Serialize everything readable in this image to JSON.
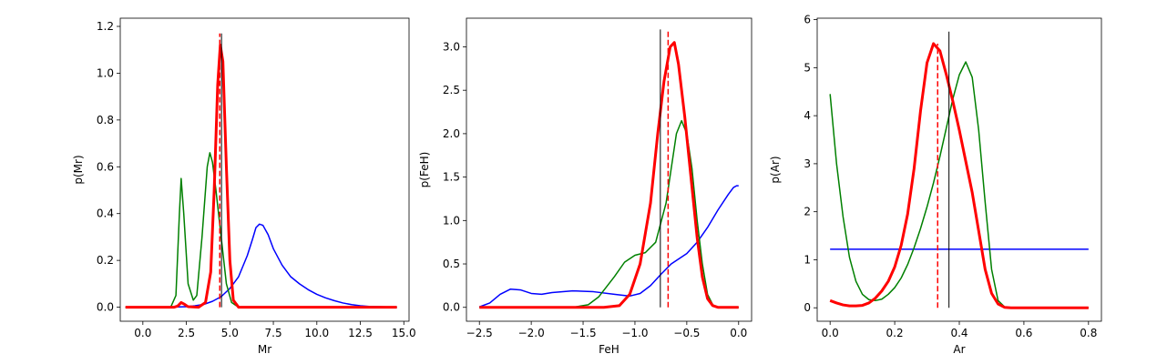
{
  "chart_data": [
    {
      "type": "line",
      "xlabel": "Mr",
      "ylabel": "p(Mr)",
      "xlim": [
        -1.3,
        15.3
      ],
      "ylim": [
        -0.06,
        1.235
      ],
      "xticks": [
        0.0,
        2.5,
        5.0,
        7.5,
        10.0,
        12.5,
        15.0
      ],
      "xtick_labels": [
        "0.0",
        "2.5",
        "5.0",
        "7.5",
        "10.0",
        "12.5",
        "15.0"
      ],
      "yticks": [
        0.0,
        0.2,
        0.4,
        0.6,
        0.8,
        1.0,
        1.2
      ],
      "ytick_labels": [
        "0.0",
        "0.2",
        "0.4",
        "0.6",
        "0.8",
        "1.0",
        "1.2"
      ],
      "series": [
        {
          "color": "#0000ff",
          "width": 1.5,
          "points": [
            [
              -1,
              0
            ],
            [
              1.5,
              0
            ],
            [
              2.5,
              0.002
            ],
            [
              3,
              0.006
            ],
            [
              3.5,
              0.012
            ],
            [
              4,
              0.025
            ],
            [
              4.5,
              0.045
            ],
            [
              5,
              0.08
            ],
            [
              5.5,
              0.13
            ],
            [
              6,
              0.22
            ],
            [
              6.3,
              0.29
            ],
            [
              6.5,
              0.34
            ],
            [
              6.7,
              0.355
            ],
            [
              6.9,
              0.35
            ],
            [
              7.2,
              0.31
            ],
            [
              7.5,
              0.25
            ],
            [
              8,
              0.18
            ],
            [
              8.5,
              0.13
            ],
            [
              9,
              0.1
            ],
            [
              9.5,
              0.075
            ],
            [
              10,
              0.055
            ],
            [
              10.5,
              0.04
            ],
            [
              11,
              0.028
            ],
            [
              11.5,
              0.018
            ],
            [
              12,
              0.011
            ],
            [
              12.5,
              0.006
            ],
            [
              13,
              0.003
            ],
            [
              14,
              0.001
            ],
            [
              14.6,
              0
            ]
          ]
        },
        {
          "color": "#008000",
          "width": 1.5,
          "points": [
            [
              -1,
              0
            ],
            [
              1.6,
              0
            ],
            [
              1.9,
              0.05
            ],
            [
              2.1,
              0.4
            ],
            [
              2.2,
              0.55
            ],
            [
              2.35,
              0.4
            ],
            [
              2.6,
              0.1
            ],
            [
              2.9,
              0.03
            ],
            [
              3.1,
              0.05
            ],
            [
              3.4,
              0.3
            ],
            [
              3.7,
              0.6
            ],
            [
              3.85,
              0.66
            ],
            [
              4.0,
              0.62
            ],
            [
              4.2,
              0.5
            ],
            [
              4.5,
              0.3
            ],
            [
              4.8,
              0.1
            ],
            [
              5.1,
              0.02
            ],
            [
              5.5,
              0
            ],
            [
              14.6,
              0
            ]
          ]
        },
        {
          "color": "#ff0000",
          "width": 3,
          "points": [
            [
              -1,
              0
            ],
            [
              1.8,
              0
            ],
            [
              2.0,
              0.005
            ],
            [
              2.2,
              0.02
            ],
            [
              2.4,
              0.012
            ],
            [
              2.6,
              0.002
            ],
            [
              3.2,
              0
            ],
            [
              3.6,
              0.02
            ],
            [
              3.9,
              0.15
            ],
            [
              4.1,
              0.5
            ],
            [
              4.3,
              0.95
            ],
            [
              4.45,
              1.12
            ],
            [
              4.6,
              1.05
            ],
            [
              4.8,
              0.6
            ],
            [
              5.0,
              0.2
            ],
            [
              5.2,
              0.03
            ],
            [
              5.5,
              0
            ],
            [
              14.6,
              0
            ]
          ]
        }
      ],
      "vlines": [
        {
          "x": 4.52,
          "color": "#000000",
          "dashed": false,
          "width": 1,
          "ymax": 1.17
        },
        {
          "x": 4.42,
          "color": "#ff0000",
          "dashed": true,
          "width": 1.5,
          "ymax": 1.17
        }
      ]
    },
    {
      "type": "line",
      "xlabel": "FeH",
      "ylabel": "p(FeH)",
      "xlim": [
        -2.625,
        0.125
      ],
      "ylim": [
        -0.16,
        3.33
      ],
      "xticks": [
        -2.5,
        -2.0,
        -1.5,
        -1.0,
        -0.5,
        0.0
      ],
      "xtick_labels": [
        "−2.5",
        "−2.0",
        "−1.5",
        "−1.0",
        "−0.5",
        "0.0"
      ],
      "yticks": [
        0.0,
        0.5,
        1.0,
        1.5,
        2.0,
        2.5,
        3.0
      ],
      "ytick_labels": [
        "0.0",
        "0.5",
        "1.0",
        "1.5",
        "2.0",
        "2.5",
        "3.0"
      ],
      "series": [
        {
          "color": "#0000ff",
          "width": 1.5,
          "points": [
            [
              -2.5,
              0.005
            ],
            [
              -2.4,
              0.05
            ],
            [
              -2.3,
              0.15
            ],
            [
              -2.2,
              0.21
            ],
            [
              -2.1,
              0.2
            ],
            [
              -2.0,
              0.16
            ],
            [
              -1.9,
              0.15
            ],
            [
              -1.8,
              0.17
            ],
            [
              -1.6,
              0.19
            ],
            [
              -1.4,
              0.18
            ],
            [
              -1.2,
              0.15
            ],
            [
              -1.05,
              0.13
            ],
            [
              -0.95,
              0.16
            ],
            [
              -0.85,
              0.25
            ],
            [
              -0.75,
              0.38
            ],
            [
              -0.65,
              0.5
            ],
            [
              -0.5,
              0.62
            ],
            [
              -0.4,
              0.75
            ],
            [
              -0.3,
              0.92
            ],
            [
              -0.2,
              1.12
            ],
            [
              -0.1,
              1.3
            ],
            [
              -0.05,
              1.38
            ],
            [
              -0.02,
              1.4
            ],
            [
              0.0,
              1.4
            ]
          ]
        },
        {
          "color": "#008000",
          "width": 1.5,
          "points": [
            [
              -2.5,
              0
            ],
            [
              -1.6,
              0
            ],
            [
              -1.45,
              0.03
            ],
            [
              -1.35,
              0.12
            ],
            [
              -1.2,
              0.35
            ],
            [
              -1.1,
              0.52
            ],
            [
              -1.0,
              0.6
            ],
            [
              -0.9,
              0.63
            ],
            [
              -0.8,
              0.75
            ],
            [
              -0.7,
              1.2
            ],
            [
              -0.65,
              1.6
            ],
            [
              -0.6,
              2.0
            ],
            [
              -0.55,
              2.15
            ],
            [
              -0.5,
              2.0
            ],
            [
              -0.45,
              1.6
            ],
            [
              -0.4,
              1.0
            ],
            [
              -0.35,
              0.5
            ],
            [
              -0.3,
              0.15
            ],
            [
              -0.25,
              0.03
            ],
            [
              -0.2,
              0
            ],
            [
              0.0,
              0
            ]
          ]
        },
        {
          "color": "#ff0000",
          "width": 3,
          "points": [
            [
              -2.5,
              0
            ],
            [
              -1.3,
              0
            ],
            [
              -1.15,
              0.02
            ],
            [
              -1.05,
              0.15
            ],
            [
              -0.95,
              0.5
            ],
            [
              -0.85,
              1.2
            ],
            [
              -0.78,
              2.0
            ],
            [
              -0.72,
              2.6
            ],
            [
              -0.66,
              3.0
            ],
            [
              -0.62,
              3.05
            ],
            [
              -0.58,
              2.8
            ],
            [
              -0.52,
              2.2
            ],
            [
              -0.46,
              1.5
            ],
            [
              -0.4,
              0.8
            ],
            [
              -0.35,
              0.35
            ],
            [
              -0.3,
              0.1
            ],
            [
              -0.25,
              0.02
            ],
            [
              -0.2,
              0
            ],
            [
              0.0,
              0
            ]
          ]
        }
      ],
      "vlines": [
        {
          "x": -0.755,
          "color": "#000000",
          "dashed": false,
          "width": 1,
          "ymax": 3.2
        },
        {
          "x": -0.68,
          "color": "#ff0000",
          "dashed": true,
          "width": 1.5,
          "ymax": 3.2
        }
      ]
    },
    {
      "type": "line",
      "xlabel": "Ar",
      "ylabel": "p(Ar)",
      "xlim": [
        -0.04,
        0.84
      ],
      "ylim": [
        -0.28,
        6.03
      ],
      "xticks": [
        0.0,
        0.2,
        0.4,
        0.6,
        0.8
      ],
      "xtick_labels": [
        "0.0",
        "0.2",
        "0.4",
        "0.6",
        "0.8"
      ],
      "yticks": [
        0,
        1,
        2,
        3,
        4,
        5,
        6
      ],
      "ytick_labels": [
        "0",
        "1",
        "2",
        "3",
        "4",
        "5",
        "6"
      ],
      "series": [
        {
          "color": "#0000ff",
          "width": 1.5,
          "points": [
            [
              0.0,
              1.22
            ],
            [
              0.8,
              1.22
            ]
          ]
        },
        {
          "color": "#008000",
          "width": 1.5,
          "points": [
            [
              0.0,
              4.45
            ],
            [
              0.02,
              3.0
            ],
            [
              0.04,
              1.9
            ],
            [
              0.06,
              1.05
            ],
            [
              0.08,
              0.55
            ],
            [
              0.1,
              0.28
            ],
            [
              0.12,
              0.17
            ],
            [
              0.14,
              0.15
            ],
            [
              0.16,
              0.18
            ],
            [
              0.18,
              0.28
            ],
            [
              0.2,
              0.42
            ],
            [
              0.22,
              0.62
            ],
            [
              0.24,
              0.9
            ],
            [
              0.26,
              1.25
            ],
            [
              0.28,
              1.65
            ],
            [
              0.3,
              2.1
            ],
            [
              0.32,
              2.6
            ],
            [
              0.34,
              3.15
            ],
            [
              0.36,
              3.75
            ],
            [
              0.38,
              4.35
            ],
            [
              0.4,
              4.85
            ],
            [
              0.42,
              5.12
            ],
            [
              0.44,
              4.8
            ],
            [
              0.46,
              3.7
            ],
            [
              0.48,
              2.2
            ],
            [
              0.5,
              0.8
            ],
            [
              0.52,
              0.15
            ],
            [
              0.54,
              0.02
            ],
            [
              0.56,
              0
            ],
            [
              0.8,
              0
            ]
          ]
        },
        {
          "color": "#ff0000",
          "width": 3,
          "points": [
            [
              0.0,
              0.15
            ],
            [
              0.02,
              0.1
            ],
            [
              0.04,
              0.06
            ],
            [
              0.06,
              0.04
            ],
            [
              0.08,
              0.04
            ],
            [
              0.1,
              0.05
            ],
            [
              0.12,
              0.1
            ],
            [
              0.14,
              0.2
            ],
            [
              0.16,
              0.35
            ],
            [
              0.18,
              0.55
            ],
            [
              0.2,
              0.85
            ],
            [
              0.22,
              1.3
            ],
            [
              0.24,
              1.95
            ],
            [
              0.26,
              2.9
            ],
            [
              0.28,
              4.1
            ],
            [
              0.3,
              5.1
            ],
            [
              0.32,
              5.5
            ],
            [
              0.34,
              5.35
            ],
            [
              0.36,
              4.85
            ],
            [
              0.38,
              4.3
            ],
            [
              0.4,
              3.7
            ],
            [
              0.42,
              3.05
            ],
            [
              0.44,
              2.4
            ],
            [
              0.46,
              1.6
            ],
            [
              0.48,
              0.8
            ],
            [
              0.5,
              0.3
            ],
            [
              0.52,
              0.08
            ],
            [
              0.54,
              0.01
            ],
            [
              0.56,
              0
            ],
            [
              0.8,
              0
            ]
          ]
        }
      ],
      "vlines": [
        {
          "x": 0.368,
          "color": "#000000",
          "dashed": false,
          "width": 1,
          "ymax": 5.75
        },
        {
          "x": 0.333,
          "color": "#ff0000",
          "dashed": true,
          "width": 1.5,
          "ymax": 5.5
        }
      ]
    }
  ]
}
